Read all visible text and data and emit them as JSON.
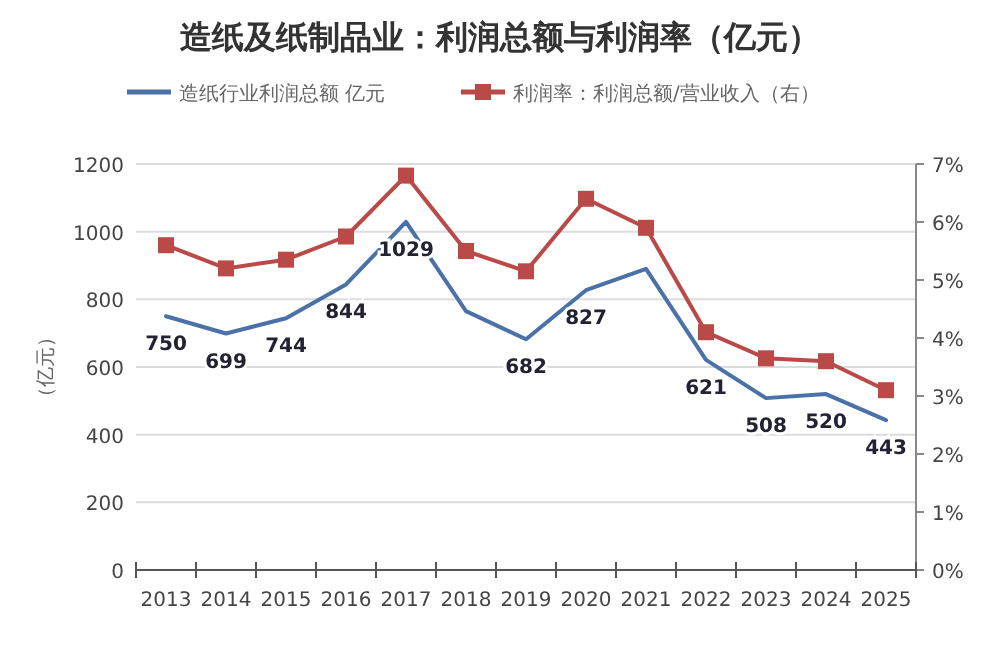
{
  "chart_data": {
    "type": "line",
    "title": "造纸及纸制品业：利润总额与利润率（亿元）",
    "ylabel": "（亿元）",
    "categories": [
      "2013",
      "2014",
      "2015",
      "2016",
      "2017",
      "2018",
      "2019",
      "2020",
      "2021",
      "2022",
      "2023",
      "2024",
      "2025"
    ],
    "series": [
      {
        "name": "造纸行业利润总额 亿元",
        "color": "#4a72a8",
        "marker": "none",
        "values": [
          750,
          699,
          744,
          844,
          1029,
          765,
          682,
          827,
          890,
          621,
          508,
          520,
          443
        ],
        "value_labels": [
          "750",
          "699",
          "744",
          "844",
          "1029",
          null,
          "682",
          "827",
          null,
          "621",
          "508",
          "520",
          "443"
        ]
      },
      {
        "name": "利润率：利润总额/营业收入（右）",
        "color": "#b94a48",
        "marker": "square",
        "axis": "y2",
        "values": [
          5.6,
          5.2,
          5.35,
          5.75,
          6.8,
          5.5,
          5.15,
          6.4,
          5.9,
          4.1,
          3.65,
          3.6,
          3.1
        ]
      }
    ],
    "ylim": [
      0,
      1200
    ],
    "yticks": [
      0,
      200,
      400,
      600,
      800,
      1000,
      1200
    ],
    "y2lim": [
      0,
      7
    ],
    "y2ticks": [
      {
        "value": 0,
        "label": "0%"
      },
      {
        "value": 1,
        "label": "1%"
      },
      {
        "value": 2,
        "label": "2%"
      },
      {
        "value": 3,
        "label": "3%"
      },
      {
        "value": 4,
        "label": "4%"
      },
      {
        "value": 5,
        "label": "5%"
      },
      {
        "value": 6,
        "label": "6%"
      },
      {
        "value": 7,
        "label": "7%"
      }
    ],
    "grid": "y",
    "legend": "top"
  }
}
